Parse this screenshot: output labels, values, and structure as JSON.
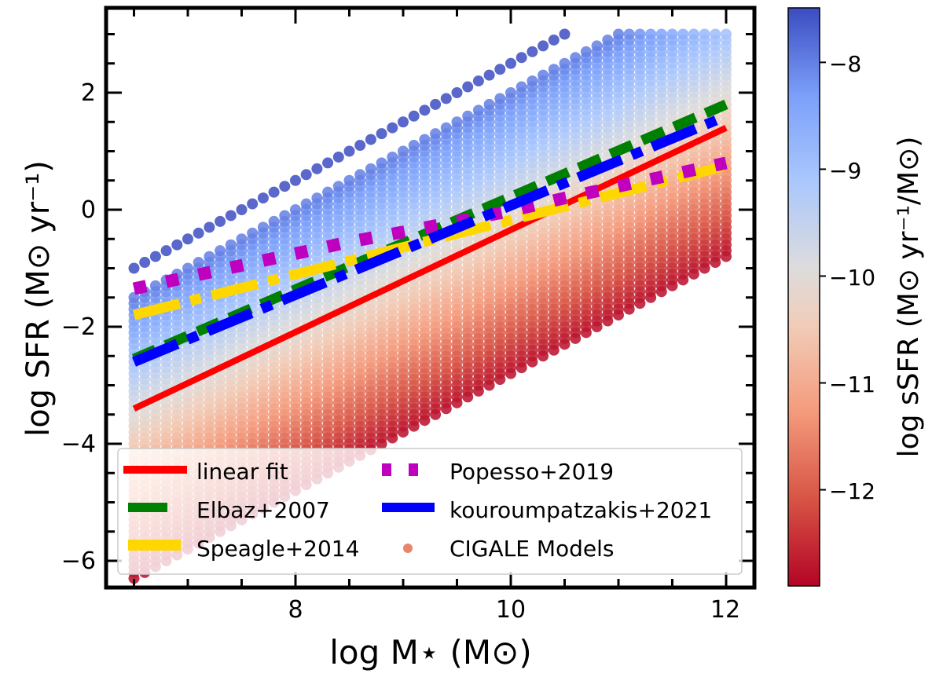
{
  "chart_data": {
    "type": "scatter",
    "xlabel": "log M⋆ (M⊙)",
    "ylabel": "log SFR (M⊙ yr⁻¹)",
    "colorbar_label": "log sSFR (M⊙ yr⁻¹/M⊙)",
    "xlim": [
      6.24,
      12.27
    ],
    "ylim": [
      -6.46,
      3.45
    ],
    "x_ticks": [
      8,
      10,
      12
    ],
    "x_tick_labels": [
      "8",
      "10",
      "12"
    ],
    "y_ticks": [
      2,
      0,
      -2,
      -4,
      -6
    ],
    "y_tick_labels": [
      "2",
      "0",
      "−2",
      "−4",
      "−6"
    ],
    "colorbar": {
      "range": [
        -12.9,
        -7.49
      ],
      "ticks": [
        -8,
        -9,
        -10,
        -11,
        -12
      ],
      "tick_labels": [
        "−8",
        "−9",
        "−10",
        "−11",
        "−12"
      ],
      "colormap": "coolwarm_r"
    },
    "scatter": {
      "name": "CIGALE Models",
      "x_range": [
        6.5,
        12.0
      ],
      "x_step": 0.1,
      "ssfr_isolated": -7.5,
      "ssfr_range": [
        -12.8,
        -8.0
      ],
      "ssfr_step": 0.1,
      "sfr_max": 3.0
    },
    "series": [
      {
        "name": "linear fit",
        "color": "#ff0000",
        "style": "solid",
        "x": [
          6.5,
          12
        ],
        "y": [
          -3.4,
          1.4
        ]
      },
      {
        "name": "Elbaz+2007",
        "color": "#008000",
        "style": "dashed",
        "x": [
          6.5,
          12
        ],
        "y": [
          -2.55,
          1.8
        ]
      },
      {
        "name": "Speagle+2014",
        "color": "#ffd700",
        "style": "dashdot",
        "x": [
          6.5,
          12
        ],
        "y": [
          -1.8,
          0.75
        ]
      },
      {
        "name": "Popesso+2019",
        "color": "#bf00bf",
        "style": "dotted",
        "x": [
          6.5,
          7,
          7.5,
          8,
          8.5,
          9,
          9.5,
          10,
          10.5,
          11,
          11.5,
          12
        ],
        "y": [
          -1.35,
          -1.15,
          -0.95,
          -0.75,
          -0.55,
          -0.38,
          -0.2,
          -0.02,
          0.2,
          0.4,
          0.6,
          0.8
        ]
      },
      {
        "name": "kouroumpatzakis+2021",
        "color": "#0000ff",
        "style": "dashdot",
        "x": [
          6.5,
          12
        ],
        "y": [
          -2.6,
          1.6
        ]
      }
    ],
    "legend": {
      "placement": "lower-center",
      "entries": [
        "linear fit",
        "Popesso+2019",
        "Elbaz+2007",
        "kouroumpatzakis+2021",
        "Speagle+2014",
        "CIGALE Models"
      ]
    }
  }
}
